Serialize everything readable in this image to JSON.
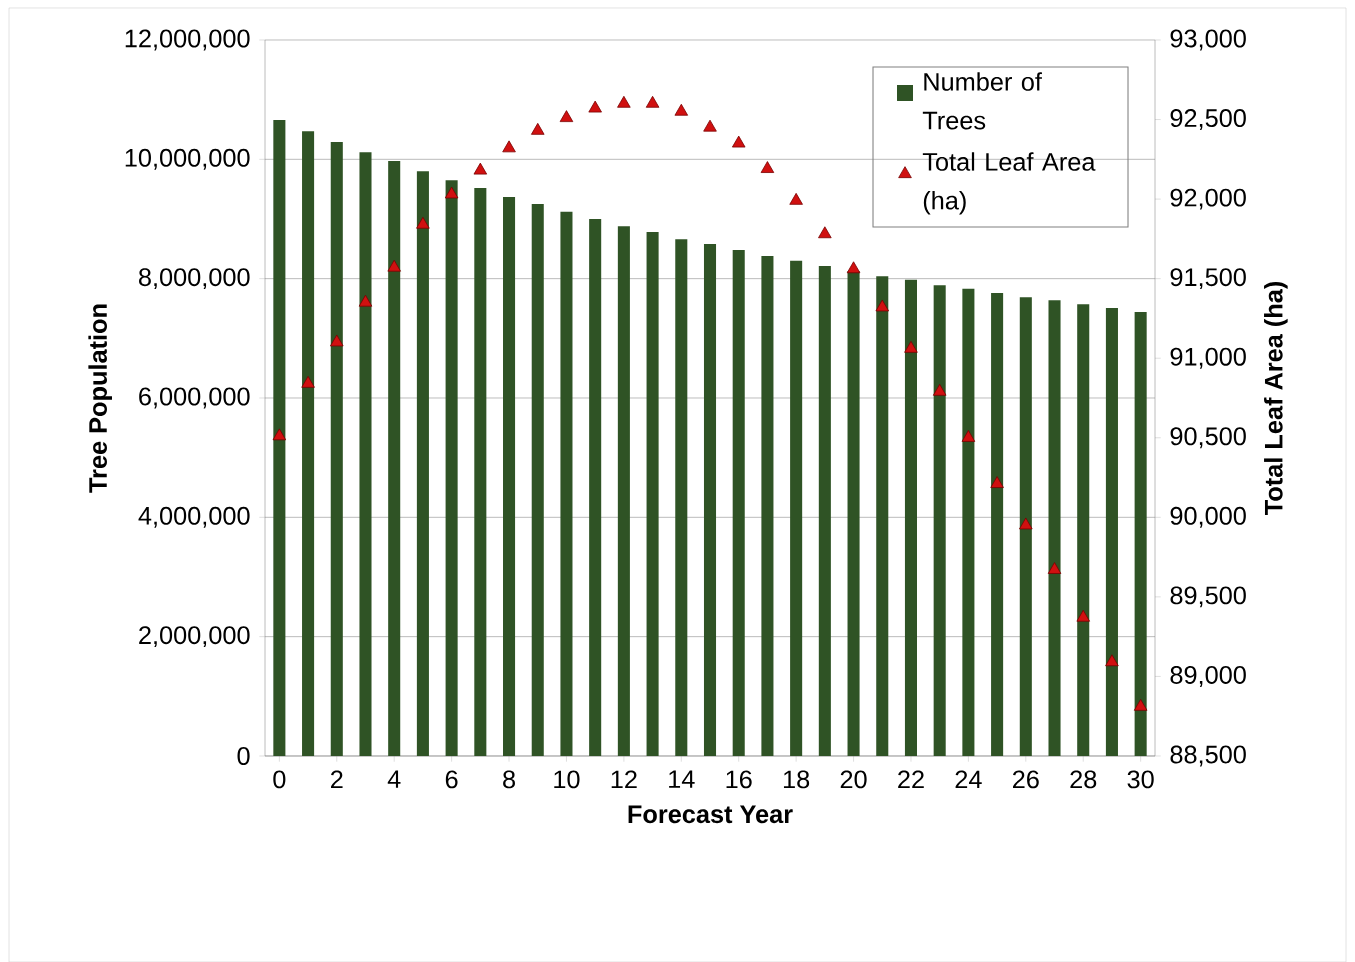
{
  "chart_data": {
    "type": "bar",
    "xlabel": "Forecast Year",
    "ylabel": "Tree Population",
    "y2label": "Total Leaf Area (ha)",
    "x": [
      0,
      1,
      2,
      3,
      4,
      5,
      6,
      7,
      8,
      9,
      10,
      11,
      12,
      13,
      14,
      15,
      16,
      17,
      18,
      19,
      20,
      21,
      22,
      23,
      24,
      25,
      26,
      27,
      28,
      29,
      30
    ],
    "xlim": [
      -0.5,
      30.5
    ],
    "xticks": [
      0,
      2,
      4,
      6,
      8,
      10,
      12,
      14,
      16,
      18,
      20,
      22,
      24,
      26,
      28,
      30
    ],
    "ylim": [
      0,
      12000000
    ],
    "yticks": [
      {
        "value": 0,
        "label": "0"
      },
      {
        "value": 2000000,
        "label": "2,000,000"
      },
      {
        "value": 4000000,
        "label": "4,000,000"
      },
      {
        "value": 6000000,
        "label": "6,000,000"
      },
      {
        "value": 8000000,
        "label": "8,000,000"
      },
      {
        "value": 10000000,
        "label": "10,000,000"
      },
      {
        "value": 12000000,
        "label": "12,000,000"
      }
    ],
    "y2lim": [
      88500,
      93000
    ],
    "y2ticks": [
      {
        "value": 88500,
        "label": "88,500"
      },
      {
        "value": 89000,
        "label": "89,000"
      },
      {
        "value": 89500,
        "label": "89,500"
      },
      {
        "value": 90000,
        "label": "90,000"
      },
      {
        "value": 90500,
        "label": "90,500"
      },
      {
        "value": 91000,
        "label": "91,000"
      },
      {
        "value": 91500,
        "label": "91,500"
      },
      {
        "value": 92000,
        "label": "92,000"
      },
      {
        "value": 92500,
        "label": "92,500"
      },
      {
        "value": 93000,
        "label": "93,000"
      }
    ],
    "grid": "y",
    "legend": "top right",
    "series": [
      {
        "name": "Number of Trees",
        "color": "#2f5325",
        "values": [
          10660000,
          10470000,
          10290000,
          10120000,
          9970000,
          9800000,
          9650000,
          9520000,
          9370000,
          9250000,
          9120000,
          9000000,
          8880000,
          8780000,
          8660000,
          8580000,
          8480000,
          8380000,
          8300000,
          8210000,
          8130000,
          8040000,
          7980000,
          7890000,
          7830000,
          7760000,
          7690000,
          7640000,
          7570000,
          7510000,
          7440000
        ]
      },
      {
        "name": "Total Leaf Area (ha)",
        "type": "scatter",
        "axis": "y2",
        "marker": "triangle",
        "color": "#d01010",
        "values": [
          90510,
          90840,
          91100,
          91350,
          91570,
          91840,
          92030,
          92180,
          92320,
          92430,
          92510,
          92570,
          92600,
          92600,
          92550,
          92450,
          92350,
          92190,
          91990,
          91780,
          91560,
          91320,
          91060,
          90790,
          90500,
          90210,
          89950,
          89670,
          89370,
          89090,
          88810
        ]
      }
    ]
  }
}
